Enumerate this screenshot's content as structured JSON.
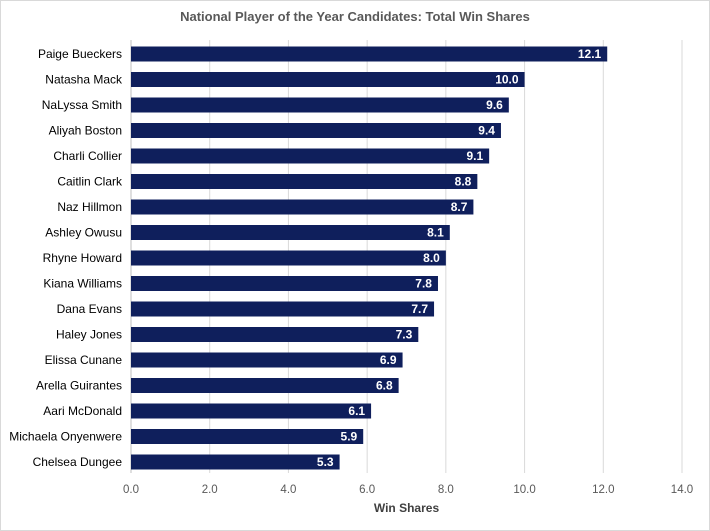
{
  "chart_data": {
    "type": "bar",
    "orientation": "horizontal",
    "title": "National Player of the Year Candidates: Total Win Shares",
    "xlabel": "Win Shares",
    "ylabel": "",
    "xlim": [
      0,
      14
    ],
    "x_ticks": [
      "0.0",
      "2.0",
      "4.0",
      "6.0",
      "8.0",
      "10.0",
      "12.0",
      "14.0"
    ],
    "grid": true,
    "bar_color": "#0f1f5c",
    "categories": [
      "Paige Bueckers",
      "Natasha Mack",
      "NaLyssa Smith",
      "Aliyah Boston",
      "Charli Collier",
      "Caitlin Clark",
      "Naz Hillmon",
      "Ashley Owusu",
      "Rhyne Howard",
      "Kiana Williams",
      "Dana Evans",
      "Haley Jones",
      "Elissa Cunane",
      "Arella Guirantes",
      "Aari McDonald",
      "Michaela Onyenwere",
      "Chelsea Dungee"
    ],
    "values": [
      12.1,
      10.0,
      9.6,
      9.4,
      9.1,
      8.8,
      8.7,
      8.1,
      8.0,
      7.8,
      7.7,
      7.3,
      6.9,
      6.8,
      6.1,
      5.9,
      5.3
    ],
    "value_labels": [
      "12.1",
      "10.0",
      "9.6",
      "9.4",
      "9.1",
      "8.8",
      "8.7",
      "8.1",
      "8.0",
      "7.8",
      "7.7",
      "7.3",
      "6.9",
      "6.8",
      "6.1",
      "5.9",
      "5.3"
    ]
  }
}
